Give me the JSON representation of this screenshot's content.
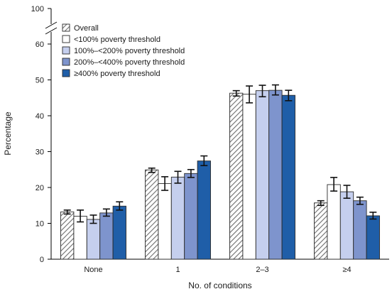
{
  "chart_data": {
    "type": "bar",
    "xlabel": "No. of conditions",
    "ylabel": "Percentage",
    "ylim": [
      0,
      100
    ],
    "axis_break": {
      "from": 60,
      "to": 100
    },
    "yticks": [
      0,
      10,
      20,
      30,
      40,
      50,
      60,
      100
    ],
    "categories": [
      "None",
      "1",
      "2–3",
      "≥4"
    ],
    "legend_position": "top-left",
    "grid": false,
    "series": [
      {
        "name": "Overall",
        "color": "#d9d9d9",
        "hatched": true,
        "values": [
          13.2,
          24.9,
          46.3,
          15.7
        ],
        "ci_low": [
          12.6,
          24.2,
          45.5,
          15.0
        ],
        "ci_high": [
          13.7,
          25.4,
          47.0,
          16.3
        ]
      },
      {
        "name": "<100% poverty threshold",
        "color": "#ffffff",
        "hatched": false,
        "values": [
          12.0,
          21.1,
          46.0,
          20.8
        ],
        "ci_low": [
          10.4,
          19.2,
          43.6,
          19.0
        ],
        "ci_high": [
          13.7,
          23.0,
          48.3,
          22.8
        ]
      },
      {
        "name": "100%–<200% poverty threshold",
        "color": "#c5cfee",
        "hatched": false,
        "values": [
          11.1,
          22.9,
          47.0,
          18.8
        ],
        "ci_low": [
          10.0,
          21.2,
          45.3,
          17.0
        ],
        "ci_high": [
          12.3,
          24.5,
          48.5,
          20.6
        ]
      },
      {
        "name": "200%–<400% poverty threshold",
        "color": "#7e94cd",
        "hatched": false,
        "values": [
          12.9,
          23.9,
          47.1,
          16.3
        ],
        "ci_low": [
          12.0,
          22.8,
          45.8,
          15.3
        ],
        "ci_high": [
          14.0,
          25.0,
          48.6,
          17.3
        ]
      },
      {
        "name": "≥400% poverty threshold",
        "color": "#1f5ea8",
        "hatched": false,
        "values": [
          14.8,
          27.4,
          45.7,
          12.1
        ],
        "ci_low": [
          13.7,
          26.1,
          44.2,
          11.2
        ],
        "ci_high": [
          16.0,
          28.8,
          47.1,
          13.1
        ]
      }
    ]
  }
}
